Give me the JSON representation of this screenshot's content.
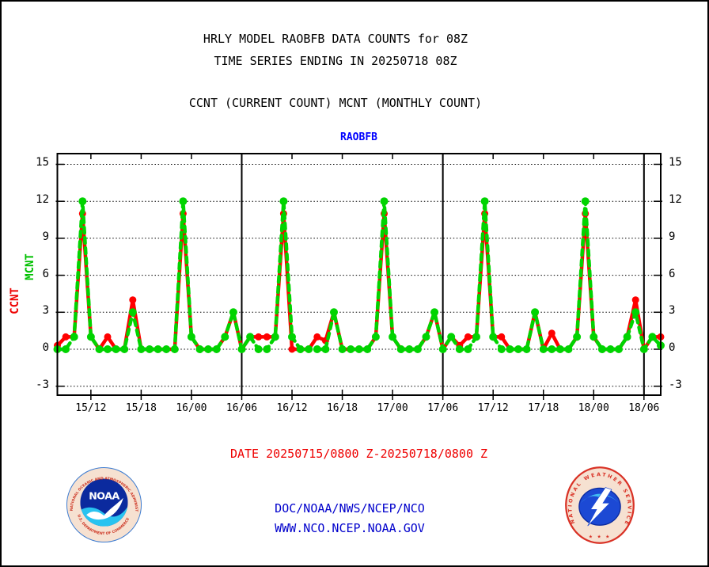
{
  "header": {
    "title_line1": "HRLY MODEL RAOBFB DATA COUNTS for 08Z",
    "title_line2": "TIME SERIES ENDING IN 20250718 08Z",
    "subtitle": "CCNT (CURRENT COUNT) MCNT (MONTHLY COUNT)"
  },
  "chart": {
    "label": "RAOBFB",
    "date_range": "DATE 20250715/0800 Z-20250718/0800 Z",
    "y_axis_label_ccnt": "CCNT",
    "y_axis_label_mcnt": "MCNT"
  },
  "footer": {
    "line1": "DOC/NOAA/NWS/NCEP/NCO",
    "line2": "WWW.NCO.NCEP.NOAA.GOV"
  },
  "noaa_logo": {
    "arc_top": "NATIONAL OCEANIC AND ATMOSPHERIC ADMINISTRATION",
    "arc_bottom": "U.S. DEPARTMENT OF COMMERCE",
    "center_text": "NOAA"
  },
  "nws_logo": {
    "arc_text": "NATIONAL WEATHER SERVICE",
    "stars": "★ ★ ★"
  },
  "colors": {
    "ccnt": "#ff0000",
    "mcnt": "#00d400",
    "chart_label": "#0000ff",
    "date_text": "#ee0000",
    "footer_text": "#0000cc",
    "axis": "#000000"
  },
  "chart_data": {
    "type": "line",
    "title": "RAOBFB",
    "xlabel": "",
    "ylabel": "CCNT MCNT",
    "x_start": "20250715/0800Z",
    "x_end": "20250718/0800Z",
    "x_hours_span": 72,
    "x_tick_labels": [
      "15/12",
      "15/18",
      "16/00",
      "16/06",
      "16/12",
      "16/18",
      "17/00",
      "17/06",
      "17/12",
      "17/18",
      "18/00",
      "18/06"
    ],
    "x_tick_hour_offsets": [
      4,
      10,
      16,
      22,
      28,
      34,
      40,
      46,
      52,
      58,
      64,
      70
    ],
    "day_boundary_hour_offsets": [
      22,
      46,
      70
    ],
    "y_ticks": [
      15,
      12,
      9,
      6,
      3,
      0,
      -3
    ],
    "ylim": [
      -3.75,
      15.9
    ],
    "grid": "dotted-horizontal",
    "legend_position": "rotated-left-axis",
    "series": [
      {
        "name": "CCNT",
        "color": "#ff0000",
        "style": "solid-with-dots",
        "values": [
          0.3,
          1,
          1,
          11,
          1,
          0,
          1,
          0,
          0,
          4,
          0,
          0,
          0,
          0,
          0,
          11,
          1,
          0,
          0,
          0,
          1,
          3,
          0,
          1,
          1,
          1,
          1,
          11,
          0,
          0,
          0,
          1,
          0.7,
          3,
          0,
          0,
          0,
          0,
          1,
          11,
          1,
          0,
          0,
          0,
          1,
          3,
          0,
          1,
          0.3,
          1,
          1,
          11,
          1,
          1,
          0,
          0,
          0,
          3,
          0,
          1.3,
          0,
          0,
          1,
          11,
          1,
          0,
          0,
          0,
          1,
          4,
          0,
          1,
          1
        ]
      },
      {
        "name": "MCNT",
        "color": "#00d400",
        "style": "dashed-with-dots",
        "values": [
          0,
          0,
          1,
          12,
          1,
          0,
          0,
          0,
          0,
          3,
          0,
          0,
          0,
          0,
          0,
          12,
          1,
          0,
          0,
          0,
          1,
          3,
          0,
          1,
          0,
          0,
          1,
          12,
          1,
          0,
          0,
          0,
          0,
          3,
          0,
          0,
          0,
          0,
          1,
          12,
          1,
          0,
          0,
          0,
          1,
          3,
          0,
          1,
          0,
          0,
          1,
          12,
          1,
          0,
          0,
          0,
          0,
          3,
          0,
          0,
          0,
          0,
          1,
          12,
          1,
          0,
          0,
          0,
          1,
          3,
          0,
          1,
          0.3
        ]
      }
    ]
  }
}
